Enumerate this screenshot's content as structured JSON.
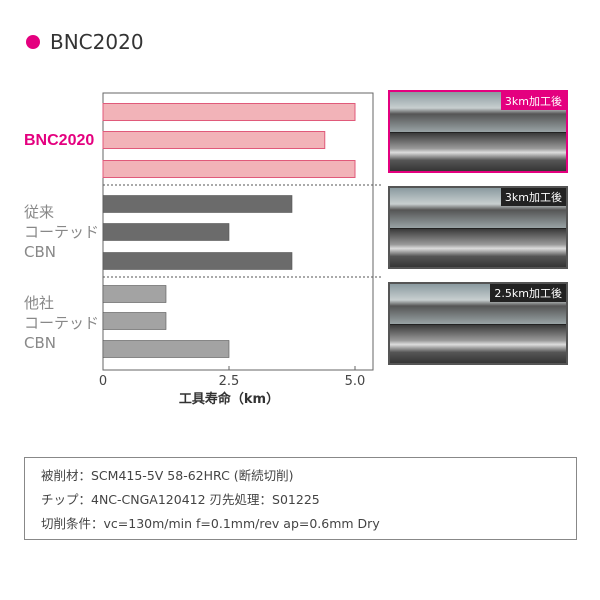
{
  "title": "BNC2020",
  "chart_data": {
    "type": "bar",
    "orientation": "horizontal",
    "xlabel": "工具寿命（km）",
    "xlim": [
      0,
      5.3
    ],
    "xticks": [
      "0",
      "2.5",
      "5.0"
    ],
    "groups": [
      {
        "label": [
          "BNC2020"
        ],
        "values": [
          5.0,
          4.4,
          5.0
        ],
        "color": "#f2b3b8"
      },
      {
        "label": [
          "従来",
          "コーテッド",
          "CBN"
        ],
        "values": [
          3.75,
          2.5,
          3.75
        ],
        "color": "#6b6b6b"
      },
      {
        "label": [
          "他社",
          "コーテッド",
          "CBN"
        ],
        "values": [
          1.25,
          1.25,
          2.5
        ],
        "color": "#a3a3a3"
      }
    ]
  },
  "photos": [
    {
      "label": "3km加工後"
    },
    {
      "label": "3km加工後"
    },
    {
      "label": "2.5km加工後"
    }
  ],
  "conditions": [
    "被削材：SCM415-5V  58-62HRC (断続切削)",
    "チップ：4NC-CNGA120412      刃先処理：S01225",
    "切削条件：vc=130m/min   f=0.1mm/rev    ap=0.6mm   Dry"
  ]
}
